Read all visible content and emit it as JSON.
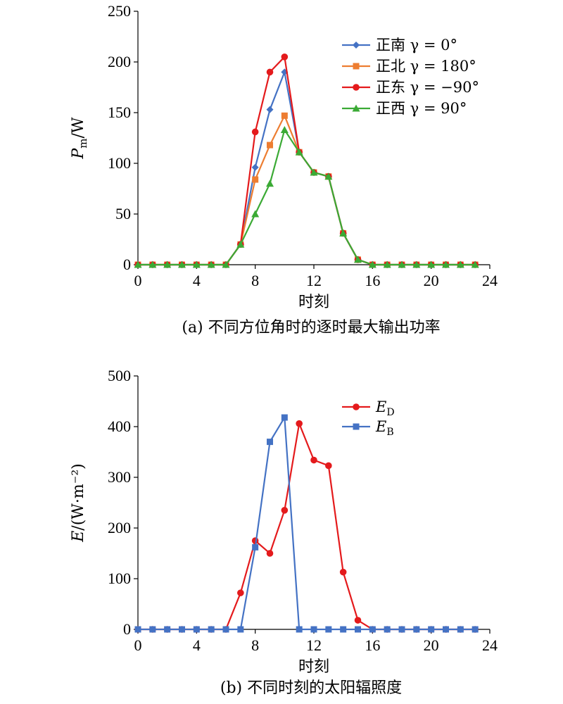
{
  "chart_data": [
    {
      "type": "line",
      "caption": "(a) 不同方位角时的逐时最大输出功率",
      "xlabel": "时刻",
      "ylabel_main": "P",
      "ylabel_sub": "m",
      "ylabel_rest": "/W",
      "xlim": [
        0,
        24
      ],
      "ylim": [
        0,
        250
      ],
      "xticks": [
        0,
        4,
        8,
        12,
        16,
        20,
        24
      ],
      "yticks": [
        0,
        50,
        100,
        150,
        200,
        250
      ],
      "legend_position": "top-right",
      "x": [
        0,
        1,
        2,
        3,
        4,
        5,
        6,
        7,
        8,
        9,
        10,
        11,
        12,
        13,
        14,
        15,
        16,
        17,
        18,
        19,
        20,
        21,
        22,
        23
      ],
      "series": [
        {
          "name": "正南 γ = 0°",
          "color": "#4472C4",
          "marker": "diamond",
          "values": [
            0,
            0,
            0,
            0,
            0,
            0,
            0,
            20,
            96,
            153,
            190,
            111,
            91,
            87,
            31,
            5,
            0,
            0,
            0,
            0,
            0,
            0,
            0,
            0
          ]
        },
        {
          "name": "正北 γ = 180°",
          "color": "#ED7D31",
          "marker": "square",
          "values": [
            0,
            0,
            0,
            0,
            0,
            0,
            0,
            20,
            84,
            118,
            147,
            111,
            91,
            87,
            31,
            5,
            0,
            0,
            0,
            0,
            0,
            0,
            0,
            0
          ]
        },
        {
          "name": "正东 γ = −90°",
          "color": "#E41A1C",
          "marker": "circle",
          "values": [
            0,
            0,
            0,
            0,
            0,
            0,
            0,
            20,
            131,
            190,
            205,
            111,
            91,
            87,
            31,
            5,
            0,
            0,
            0,
            0,
            0,
            0,
            0,
            0
          ]
        },
        {
          "name": "正西 γ = 90°",
          "color": "#3BAA35",
          "marker": "triangle",
          "values": [
            0,
            0,
            0,
            0,
            0,
            0,
            0,
            20,
            50,
            80,
            133,
            111,
            91,
            87,
            31,
            5,
            0,
            0,
            0,
            0,
            0,
            0,
            0,
            0
          ]
        }
      ]
    },
    {
      "type": "line",
      "caption": "(b) 不同时刻的太阳辐照度",
      "xlabel": "时刻",
      "ylabel_main": "E",
      "ylabel_sub": "",
      "ylabel_rest": "/(W·m⁻²)",
      "xlim": [
        0,
        24
      ],
      "ylim": [
        0,
        500
      ],
      "xticks": [
        0,
        4,
        8,
        12,
        16,
        20,
        24
      ],
      "yticks": [
        0,
        100,
        200,
        300,
        400,
        500
      ],
      "legend_position": "top-right",
      "x": [
        0,
        1,
        2,
        3,
        4,
        5,
        6,
        7,
        8,
        9,
        10,
        11,
        12,
        13,
        14,
        15,
        16,
        17,
        18,
        19,
        20,
        21,
        22,
        23
      ],
      "series": [
        {
          "name": "E",
          "subscript": "D",
          "color": "#E41A1C",
          "marker": "circle",
          "values": [
            0,
            0,
            0,
            0,
            0,
            0,
            0,
            72,
            175,
            150,
            235,
            406,
            334,
            323,
            113,
            18,
            0,
            0,
            0,
            0,
            0,
            0,
            0,
            0
          ]
        },
        {
          "name": "E",
          "subscript": "B",
          "color": "#4472C4",
          "marker": "square",
          "values": [
            0,
            0,
            0,
            0,
            0,
            0,
            0,
            0,
            162,
            370,
            418,
            0,
            0,
            0,
            0,
            0,
            0,
            0,
            0,
            0,
            0,
            0,
            0,
            0
          ]
        }
      ]
    }
  ]
}
